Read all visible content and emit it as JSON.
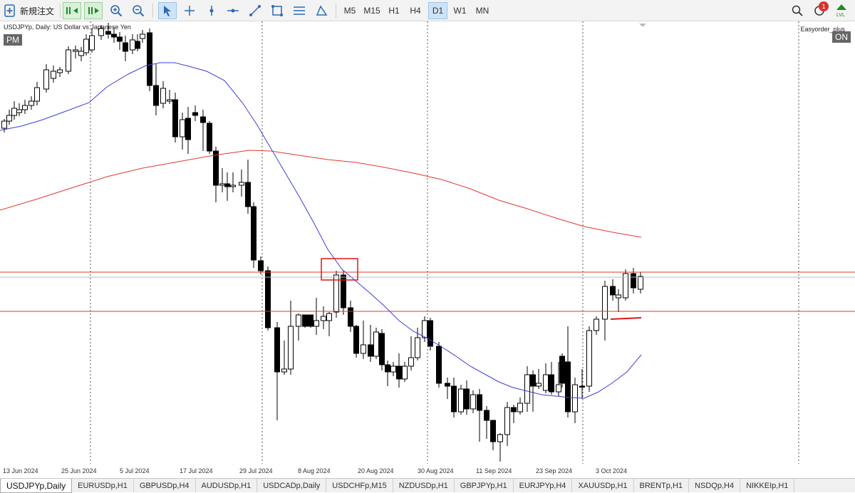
{
  "toolbar": {
    "new_order_label": "新規注文",
    "tools": [
      "one-click-trading-icon",
      "chart-shift-icon",
      "zoom-in-icon",
      "zoom-out-icon",
      "cursor-icon",
      "crosshair-icon",
      "vertical-line-icon",
      "horizontal-line-icon",
      "trendline-icon",
      "rectangle-icon",
      "fibonacci-icon",
      "triangle-icon"
    ],
    "timeframes": [
      "M5",
      "M15",
      "H1",
      "H4",
      "D1",
      "W1",
      "MN"
    ],
    "active_timeframe": "D1",
    "notification_count": "1"
  },
  "chart": {
    "symbol_label": "USDJPYp, Daily:  US Dollar vs Japanese Yen",
    "pm_label": "PM",
    "easyorder_label": "Easyorder_plus",
    "on_label": "ON"
  },
  "chart_data": {
    "type": "candlestick",
    "x_ticks": [
      "13 Jun 2024",
      "25 Jun 2024",
      "5 Jul 2024",
      "17 Jul 2024",
      "29 Jul 2024",
      "8 Aug 2024",
      "20 Aug 2024",
      "30 Aug 2024",
      "11 Sep 2024",
      "23 Sep 2024",
      "3 Oct 2024"
    ],
    "colors": {
      "bull": "#ffffff",
      "bear": "#000000",
      "ma_short": "#3d3dd9",
      "ma_long": "#e03a2f",
      "hline": "#e03a2f",
      "box": "#e01515"
    }
  },
  "tabs": [
    "USDJPYp,Daily",
    "EURUSDp,H1",
    "GBPUSDp,H4",
    "AUDUSDp,H1",
    "USDCADp,Daily",
    "USDCHFp,M15",
    "NZDUSDp,H1",
    "GBPJPYp,H1",
    "EURJPYp,H4",
    "XAUUSDp,H1",
    "BRENTp,H1",
    "NSDQp,H4",
    "NIKKEIp,H1"
  ],
  "active_tab": "USDJPYp,Daily"
}
